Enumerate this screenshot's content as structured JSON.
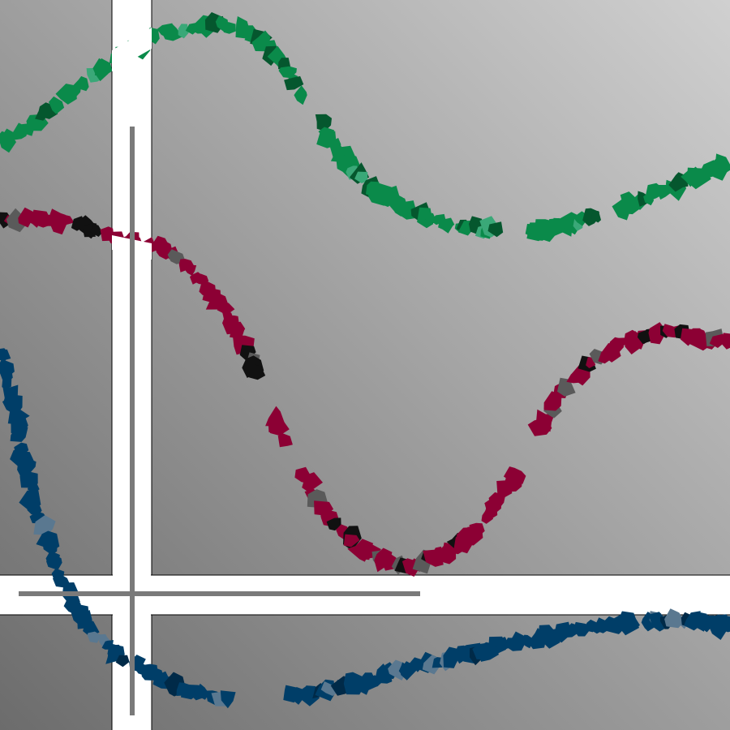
{
  "scene": {
    "background_light": "#d0d0d0",
    "background_dark": "#6c6c6c",
    "band_color": "#ffffff",
    "band_edge_color": "#000000",
    "crosshair_color": "#7a7a7a"
  },
  "strokes": [
    {
      "name": "green-stroke",
      "color": "#0a8a4a",
      "dark": "#05572e",
      "light": "#3aa878"
    },
    {
      "name": "crimson-stroke",
      "color": "#8c0034",
      "dark": "#111111",
      "light": "#5a5a5a"
    },
    {
      "name": "navy-stroke",
      "color": "#003e68",
      "dark": "#002a48",
      "light": "#5a7890"
    }
  ]
}
